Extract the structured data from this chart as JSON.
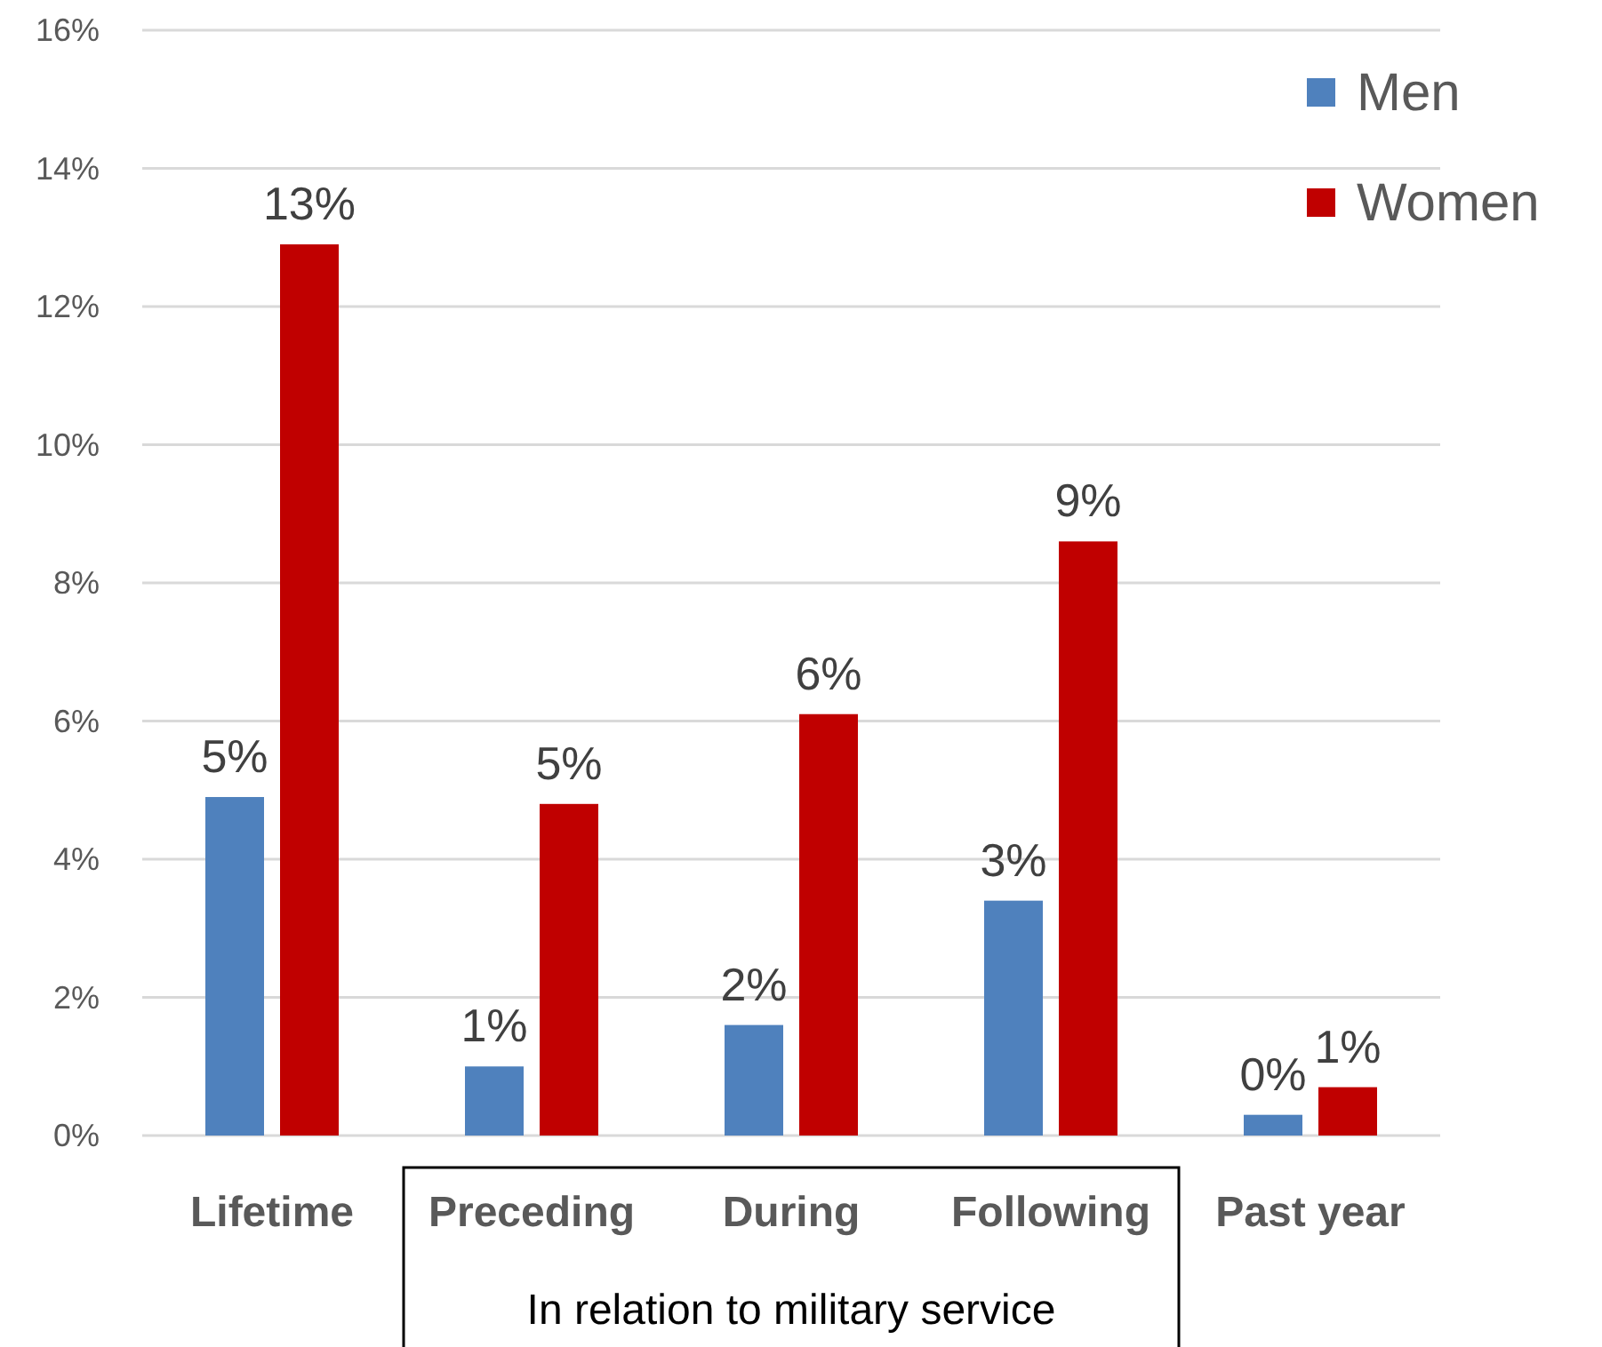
{
  "chart_data": {
    "type": "bar",
    "categories": [
      "Lifetime",
      "Preceding",
      "During",
      "Following",
      "Past year"
    ],
    "series": [
      {
        "name": "Men",
        "color": "#4f81bd",
        "values": [
          4.9,
          1.0,
          1.6,
          3.4,
          0.3
        ],
        "value_labels": [
          "5%",
          "1%",
          "2%",
          "3%",
          "0%"
        ]
      },
      {
        "name": "Women",
        "color": "#c00000",
        "values": [
          12.9,
          4.8,
          6.1,
          8.6,
          0.7
        ],
        "value_labels": [
          "13%",
          "5%",
          "6%",
          "9%",
          "1%"
        ]
      }
    ],
    "ylim": [
      0,
      16
    ],
    "yticks": [
      {
        "value": 0,
        "label": "0%"
      },
      {
        "value": 2,
        "label": "2%"
      },
      {
        "value": 4,
        "label": "4%"
      },
      {
        "value": 6,
        "label": "6%"
      },
      {
        "value": 8,
        "label": "8%"
      },
      {
        "value": 10,
        "label": "10%"
      },
      {
        "value": 12,
        "label": "12%"
      },
      {
        "value": 14,
        "label": "14%"
      },
      {
        "value": 16,
        "label": "16%"
      }
    ],
    "grid": "y",
    "legend": "top right",
    "annotations": [
      "In relation to military service"
    ]
  }
}
